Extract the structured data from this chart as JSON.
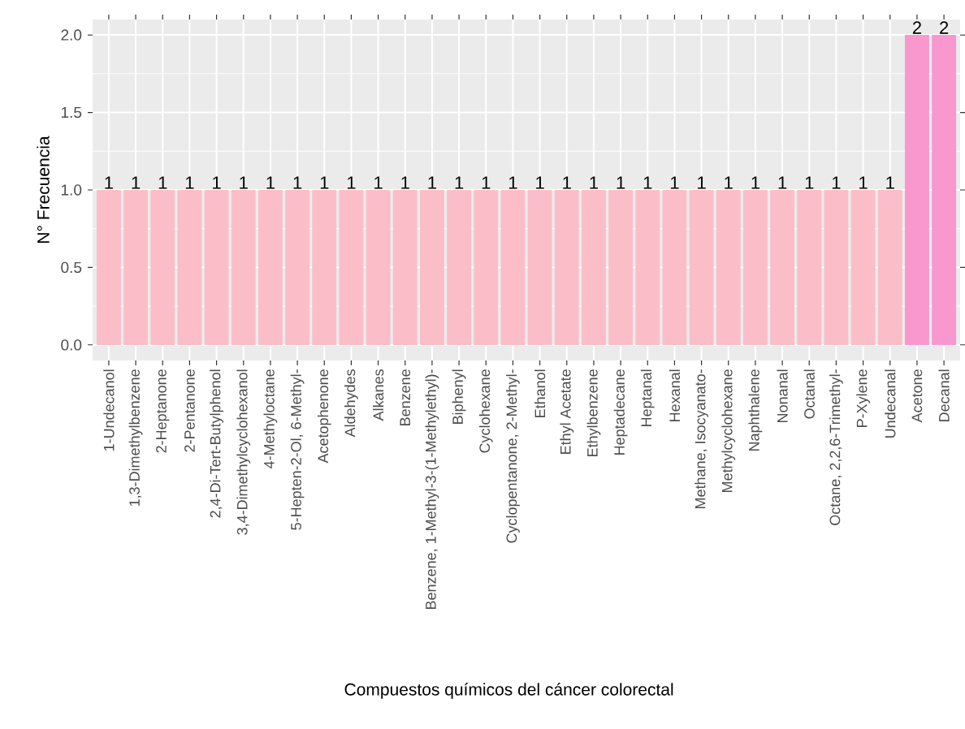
{
  "chart_data": {
    "type": "bar",
    "xlabel": "Compuestos químicos del cáncer colorectal",
    "ylabel": "N° Frecuencia",
    "categories": [
      "1-Undecanol",
      "1,3-Dimethylbenzene",
      "2-Heptanone",
      "2-Pentanone",
      "2,4-Di-Tert-Butylphenol",
      "3,4-Dimethylcyclohexanol",
      "4-Methyloctane",
      "5-Hepten-2-Ol, 6-Methyl-",
      "Acetophenone",
      "Aldehydes",
      "Alkanes",
      "Benzene",
      "Benzene, 1-Methyl-3-(1-Methylethyl)-",
      "Biphenyl",
      "Cyclohexane",
      "Cyclopentanone, 2-Methyl-",
      "Ethanol",
      "Ethyl Acetate",
      "Ethylbenzene",
      "Heptadecane",
      "Heptanal",
      "Hexanal",
      "Methane, Isocyanato-",
      "Methylcyclohexane",
      "Naphthalene",
      "Nonanal",
      "Octanal",
      "Octane, 2,2,6-Trimethyl-",
      "P-Xylene",
      "Undecanal",
      "Acetone",
      "Decanal"
    ],
    "values": [
      1,
      1,
      1,
      1,
      1,
      1,
      1,
      1,
      1,
      1,
      1,
      1,
      1,
      1,
      1,
      1,
      1,
      1,
      1,
      1,
      1,
      1,
      1,
      1,
      1,
      1,
      1,
      1,
      1,
      1,
      2,
      2
    ],
    "colors": [
      "#fbbec9",
      "#fbbec9",
      "#fbbec9",
      "#fbbec9",
      "#fbbec9",
      "#fbbec9",
      "#fbbec9",
      "#fbbec9",
      "#fbbec9",
      "#fbbec9",
      "#fbbec9",
      "#fbbec9",
      "#fbbec9",
      "#fbbec9",
      "#fbbec9",
      "#fbbec9",
      "#fbbec9",
      "#fbbec9",
      "#fbbec9",
      "#fbbec9",
      "#fbbec9",
      "#fbbec9",
      "#fbbec9",
      "#fbbec9",
      "#fbbec9",
      "#fbbec9",
      "#fbbec9",
      "#fbbec9",
      "#fbbec9",
      "#fbbec9",
      "#f898cf",
      "#f898cf"
    ],
    "ylim": [
      -0.1,
      2.1
    ],
    "yticks": [
      {
        "value": 0,
        "label": "0.0"
      },
      {
        "value": 0.5,
        "label": "0.5"
      },
      {
        "value": 1,
        "label": "1.0"
      },
      {
        "value": 1.5,
        "label": "1.5"
      },
      {
        "value": 2,
        "label": "2.0"
      }
    ],
    "grid": true,
    "data_labels": true
  }
}
